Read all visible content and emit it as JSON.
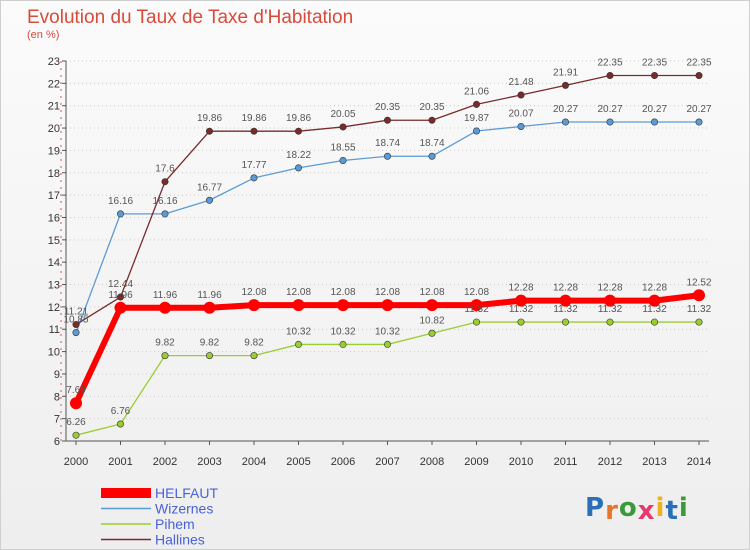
{
  "chart_data": {
    "type": "line",
    "title": "Evolution du Taux de Taxe d'Habitation",
    "ylabel": "(en %)",
    "xlabel": "",
    "ylim": [
      6,
      23
    ],
    "grid": "horizontal dotted",
    "legend_position": "bottom-left",
    "categories": [
      "2000",
      "2001",
      "2002",
      "2003",
      "2004",
      "2005",
      "2006",
      "2007",
      "2008",
      "2009",
      "2010",
      "2011",
      "2012",
      "2013",
      "2014"
    ],
    "y_ticks": [
      6,
      7,
      8,
      9,
      10,
      11,
      12,
      13,
      14,
      15,
      16,
      17,
      18,
      19,
      20,
      21,
      22,
      23
    ],
    "series": [
      {
        "name": "HELFAUT",
        "color": "#ff0000",
        "values": [
          7.69,
          11.96,
          11.96,
          11.96,
          12.08,
          12.08,
          12.08,
          12.08,
          12.08,
          12.08,
          12.28,
          12.28,
          12.28,
          12.28,
          12.52
        ],
        "labels": [
          "7.69",
          "11.96",
          "11.96",
          "11.96",
          "12.08",
          "12.08",
          "12.08",
          "12.08",
          "12.08",
          "12.08",
          "12.28",
          "12.28",
          "12.28",
          "12.28",
          "12.52"
        ]
      },
      {
        "name": "Wizernes",
        "color": "#5b9bd5",
        "values": [
          10.85,
          16.16,
          16.16,
          16.77,
          17.77,
          18.22,
          18.55,
          18.74,
          18.74,
          19.87,
          20.07,
          20.27,
          20.27,
          20.27,
          20.27
        ],
        "labels": [
          "10.85",
          "16.16",
          "16.16",
          "16.77",
          "17.77",
          "18.22",
          "18.55",
          "18.74",
          "18.74",
          "19.87",
          "20.07",
          "20.27",
          "20.27",
          "20.27",
          "20.27"
        ]
      },
      {
        "name": "Pihem",
        "color": "#9acd32",
        "values": [
          6.26,
          6.76,
          9.82,
          9.82,
          9.82,
          10.32,
          10.32,
          10.32,
          10.82,
          11.32,
          11.32,
          11.32,
          11.32,
          11.32,
          11.32
        ],
        "labels": [
          "6.26",
          "6.76",
          "9.82",
          "9.82",
          "9.82",
          "10.32",
          "10.32",
          "10.32",
          "10.82",
          "11.32",
          "11.32",
          "11.32",
          "11.32",
          "11.32",
          "11.32"
        ]
      },
      {
        "name": "Hallines",
        "color": "#7a2a2a",
        "values": [
          11.21,
          12.44,
          17.6,
          19.86,
          19.86,
          19.86,
          20.05,
          20.35,
          20.35,
          21.06,
          21.48,
          21.91,
          22.35,
          22.35,
          22.35
        ],
        "labels": [
          "11.21",
          "12.44",
          "17.6",
          "19.86",
          "19.86",
          "19.86",
          "20.05",
          "20.35",
          "20.35",
          "21.06",
          "21.48",
          "21.91",
          "22.35",
          "22.35",
          "22.35"
        ]
      }
    ]
  },
  "logo": {
    "letters": [
      "P",
      "r",
      "o",
      "x",
      "i",
      "t",
      "i"
    ],
    "colors": [
      "#2a6fb8",
      "#e8732a",
      "#3a9a3a",
      "#e83a6a",
      "#f0b020",
      "#2a6fb8",
      "#3a9a3a"
    ]
  }
}
